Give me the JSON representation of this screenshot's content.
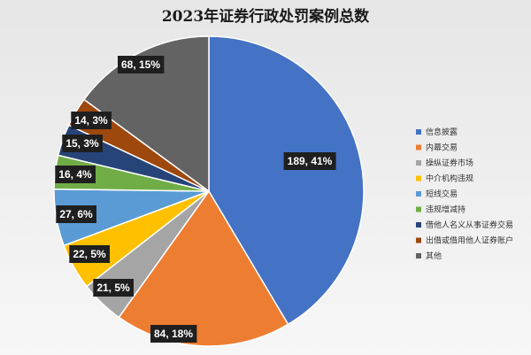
{
  "chart_data": {
    "type": "pie",
    "title": "2023年证券行政处罚案例总数",
    "legend_position": "right",
    "slices": [
      {
        "name": "信息披露",
        "value": 189,
        "percent": "41%",
        "label": "189, 41%",
        "color": "#4472C4"
      },
      {
        "name": "内幕交易",
        "value": 84,
        "percent": "18%",
        "label": "84, 18%",
        "color": "#ED7D31"
      },
      {
        "name": "操纵证券市场",
        "value": 21,
        "percent": "5%",
        "label": "21, 5%",
        "color": "#A5A5A5"
      },
      {
        "name": "中介机构违规",
        "value": 22,
        "percent": "5%",
        "label": "22, 5%",
        "color": "#FFC000"
      },
      {
        "name": "短线交易",
        "value": 27,
        "percent": "6%",
        "label": "27, 6%",
        "color": "#5B9BD5"
      },
      {
        "name": "违规增减持",
        "value": 16,
        "percent": "4%",
        "label": "16, 4%",
        "color": "#70AD47"
      },
      {
        "name": "借他人名义从事证券交易",
        "value": 15,
        "percent": "3%",
        "label": "15, 3%",
        "color": "#264478"
      },
      {
        "name": "出借或借用他人证券账户",
        "value": 14,
        "percent": "3%",
        "label": "14, 3%",
        "color": "#9E480E"
      },
      {
        "name": "其他",
        "value": 68,
        "percent": "15%",
        "label": "68, 15%",
        "color": "#636363"
      }
    ]
  }
}
